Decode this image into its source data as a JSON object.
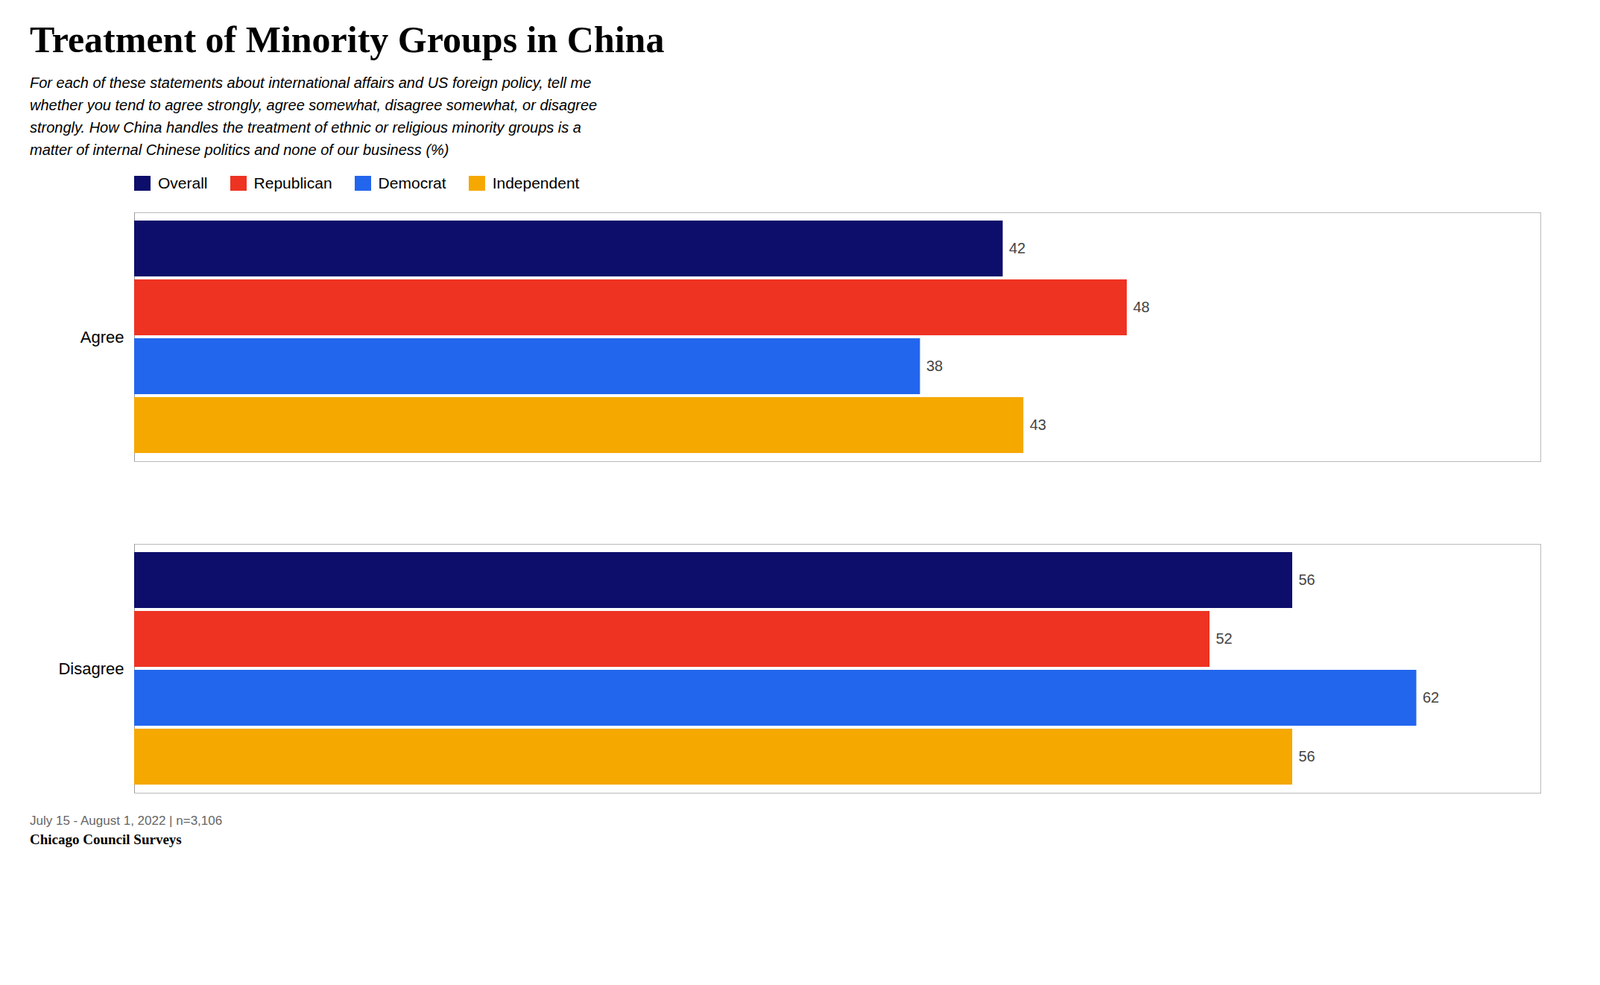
{
  "chart_data": {
    "type": "bar",
    "orientation": "horizontal",
    "title": "Treatment of Minority Groups in China",
    "subtitle": "For each of these statements about international affairs and US foreign policy, tell me\nwhether you tend to agree strongly, agree somewhat, disagree somewhat, or disagree\nstrongly. How China handles the treatment of ethnic or religious minority groups is a\nmatter of internal Chinese politics and none of our business (%)",
    "categories": [
      "Agree",
      "Disagree"
    ],
    "series": [
      {
        "name": "Overall",
        "color": "#0d0d6b",
        "values": [
          42,
          56
        ]
      },
      {
        "name": "Republican",
        "color": "#ee3322",
        "values": [
          48,
          52
        ]
      },
      {
        "name": "Democrat",
        "color": "#2266ee",
        "values": [
          38,
          62
        ]
      },
      {
        "name": "Independent",
        "color": "#f5a800",
        "values": [
          43,
          56
        ]
      }
    ],
    "xlim": [
      0,
      68
    ],
    "data_labels": true,
    "tick_labels": "y",
    "grid": false,
    "legend": "top",
    "annotations": [
      "July 15 - August 1, 2022 | n=3,106",
      "Chicago Council Surveys"
    ]
  }
}
